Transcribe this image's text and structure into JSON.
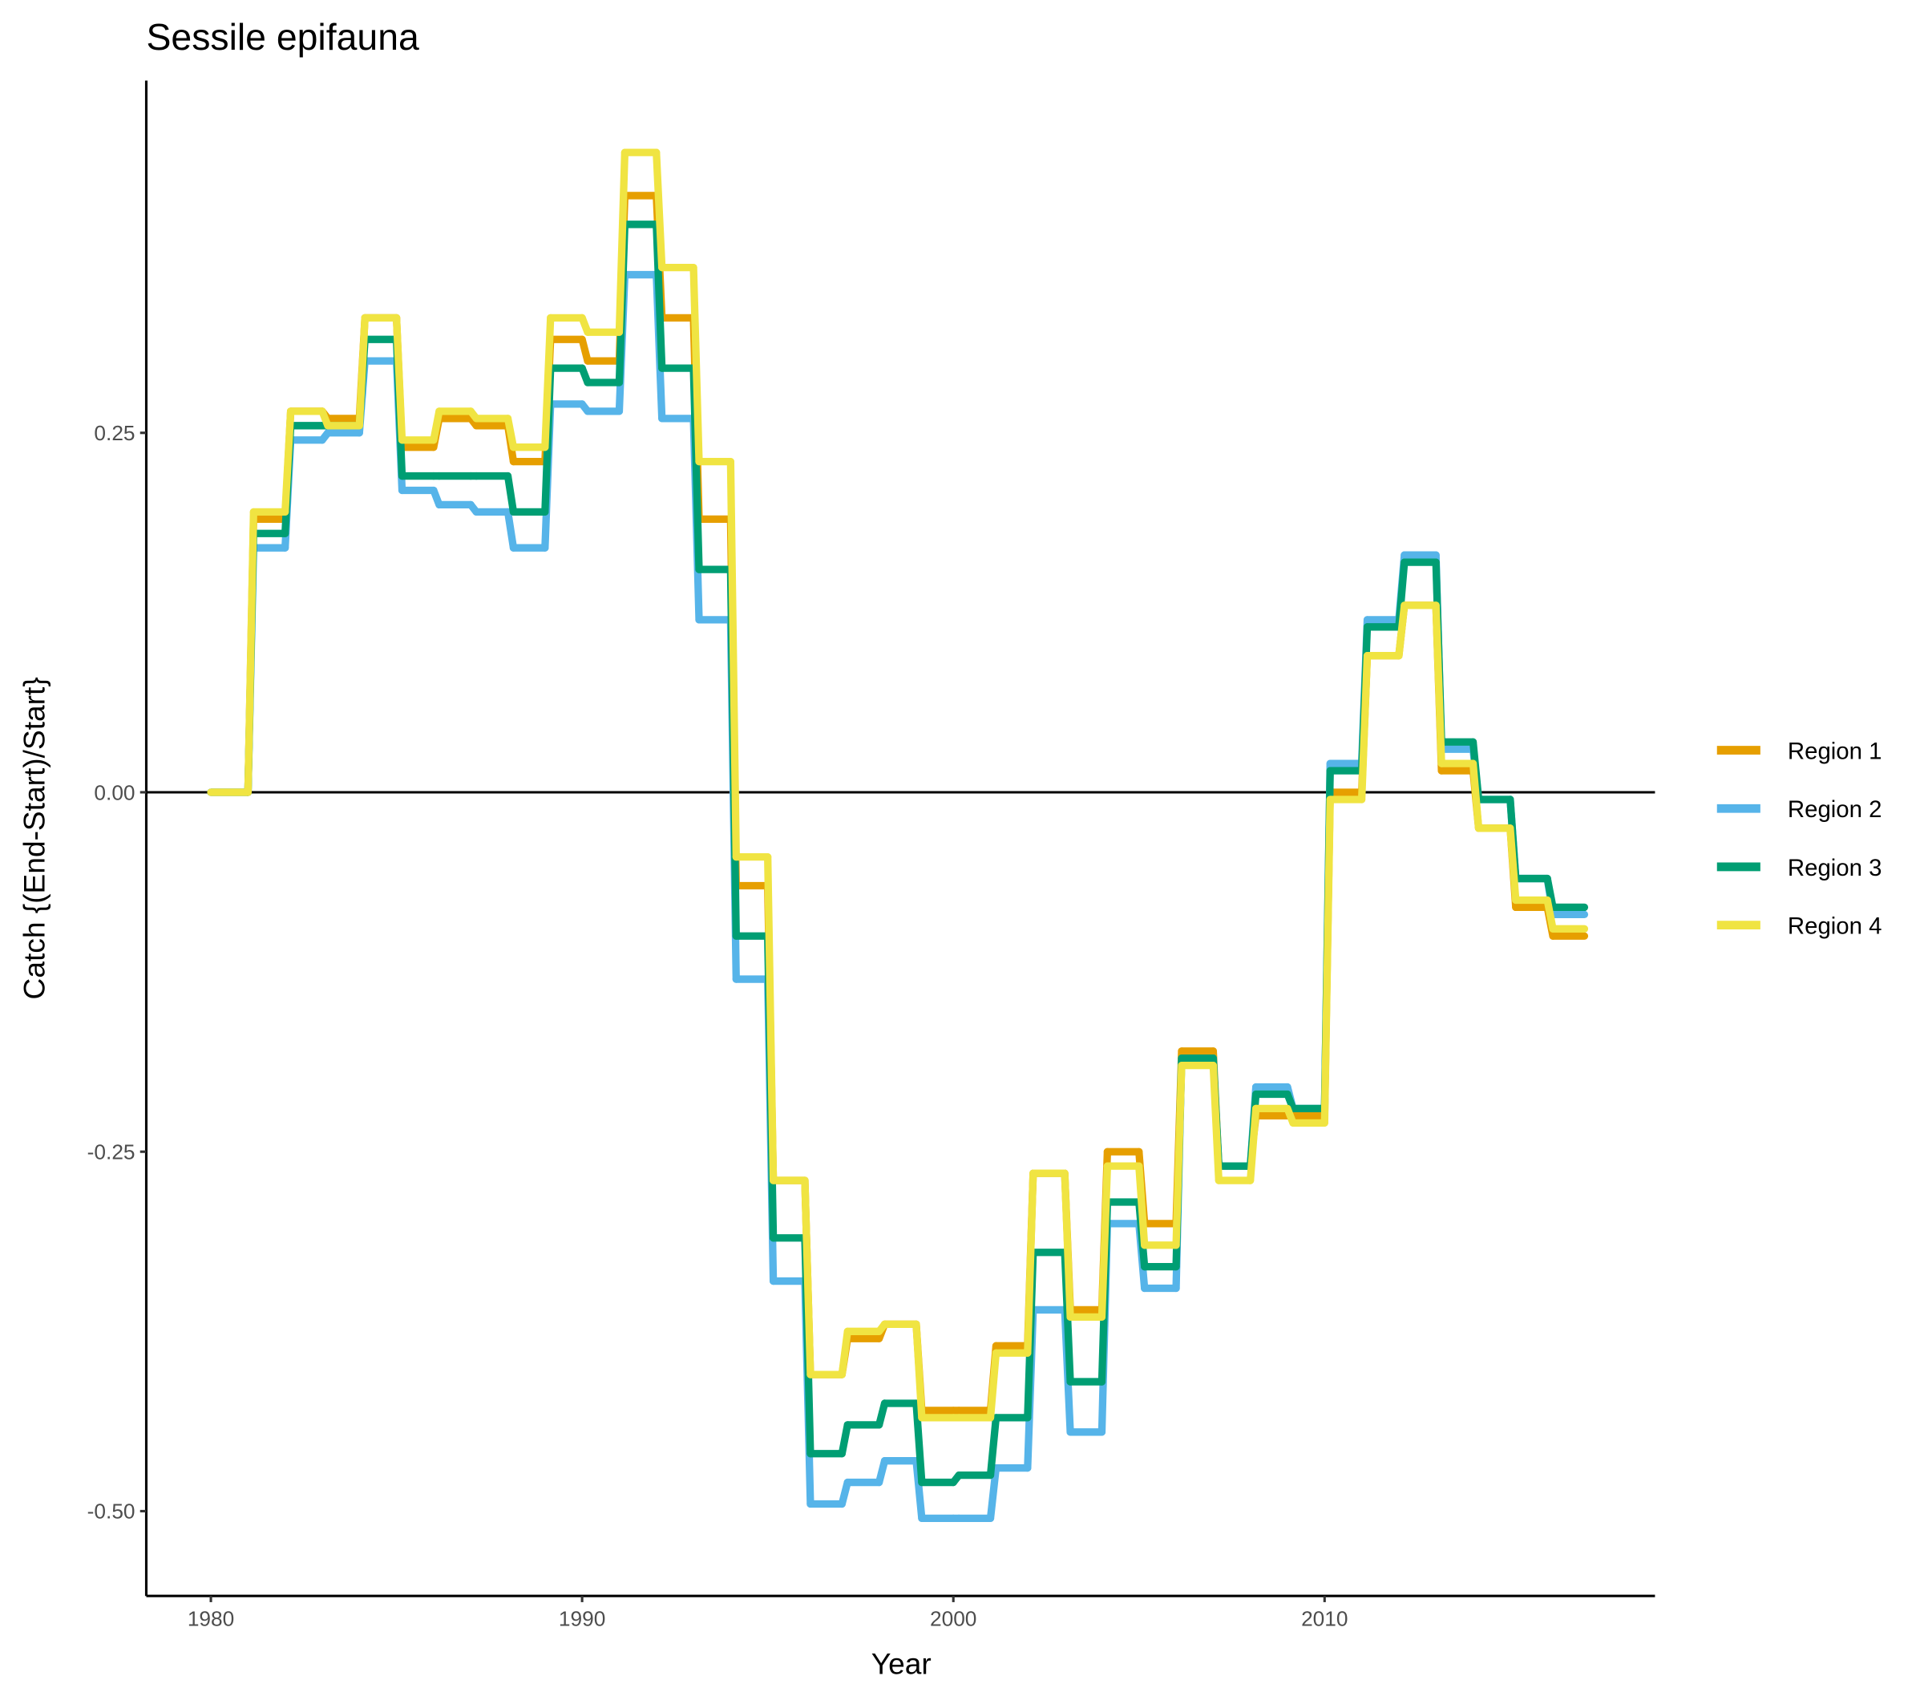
{
  "chart_data": {
    "type": "line",
    "title": "Sessile epifauna",
    "x_label": "Year",
    "y_label": "Catch {(End-Start)/Start}",
    "x": [
      1980,
      1981,
      1982,
      1983,
      1984,
      1985,
      1986,
      1987,
      1988,
      1989,
      1990,
      1991,
      1992,
      1993,
      1994,
      1995,
      1996,
      1997,
      1998,
      1999,
      2000,
      2001,
      2002,
      2003,
      2004,
      2005,
      2006,
      2007,
      2008,
      2009,
      2010,
      2011,
      2012,
      2013,
      2014,
      2015,
      2016
    ],
    "series": [
      {
        "name": "Region 1",
        "color": "#e69f00",
        "values": [
          0,
          0.19,
          0.265,
          0.26,
          0.33,
          0.24,
          0.26,
          0.255,
          0.23,
          0.315,
          0.3,
          0.415,
          0.33,
          0.19,
          -0.065,
          -0.27,
          -0.405,
          -0.38,
          -0.37,
          -0.43,
          -0.43,
          -0.385,
          -0.265,
          -0.36,
          -0.25,
          -0.3,
          -0.18,
          -0.26,
          -0.225,
          -0.225,
          0,
          0.095,
          0.13,
          0.015,
          -0.025,
          -0.08,
          -0.1
        ]
      },
      {
        "name": "Region 2",
        "color": "#56b4e9",
        "values": [
          0,
          0.17,
          0.245,
          0.25,
          0.3,
          0.21,
          0.2,
          0.195,
          0.17,
          0.27,
          0.265,
          0.36,
          0.26,
          0.12,
          -0.13,
          -0.34,
          -0.495,
          -0.48,
          -0.465,
          -0.505,
          -0.505,
          -0.47,
          -0.36,
          -0.445,
          -0.3,
          -0.345,
          -0.185,
          -0.26,
          -0.205,
          -0.22,
          0.02,
          0.12,
          0.165,
          0.03,
          -0.005,
          -0.06,
          -0.085
        ]
      },
      {
        "name": "Region 3",
        "color": "#009e73",
        "values": [
          0,
          0.18,
          0.255,
          0.255,
          0.315,
          0.22,
          0.22,
          0.22,
          0.195,
          0.295,
          0.285,
          0.395,
          0.295,
          0.155,
          -0.1,
          -0.31,
          -0.46,
          -0.44,
          -0.425,
          -0.48,
          -0.475,
          -0.435,
          -0.32,
          -0.41,
          -0.285,
          -0.33,
          -0.185,
          -0.26,
          -0.21,
          -0.22,
          0.015,
          0.115,
          0.16,
          0.035,
          -0.005,
          -0.06,
          -0.08
        ]
      },
      {
        "name": "Region 4",
        "color": "#f0e442",
        "values": [
          0,
          0.195,
          0.265,
          0.255,
          0.33,
          0.245,
          0.265,
          0.26,
          0.24,
          0.33,
          0.32,
          0.445,
          0.365,
          0.23,
          -0.045,
          -0.27,
          -0.405,
          -0.375,
          -0.37,
          -0.435,
          -0.435,
          -0.39,
          -0.265,
          -0.365,
          -0.26,
          -0.315,
          -0.19,
          -0.27,
          -0.22,
          -0.23,
          -0.005,
          0.095,
          0.13,
          0.02,
          -0.025,
          -0.075,
          -0.095
        ]
      }
    ],
    "xlim": [
      1978.26,
      2018.9
    ],
    "ylim": [
      -0.559,
      0.495
    ],
    "xticks": [
      1980,
      1990,
      2000,
      2010
    ],
    "yticks": [
      {
        "value": 0.25,
        "label": "0.25"
      },
      {
        "value": 0,
        "label": "0.00"
      },
      {
        "value": -0.25,
        "label": "-0.25"
      },
      {
        "value": -0.5,
        "label": "-0.50"
      }
    ],
    "hline": 0,
    "legend": "right"
  }
}
